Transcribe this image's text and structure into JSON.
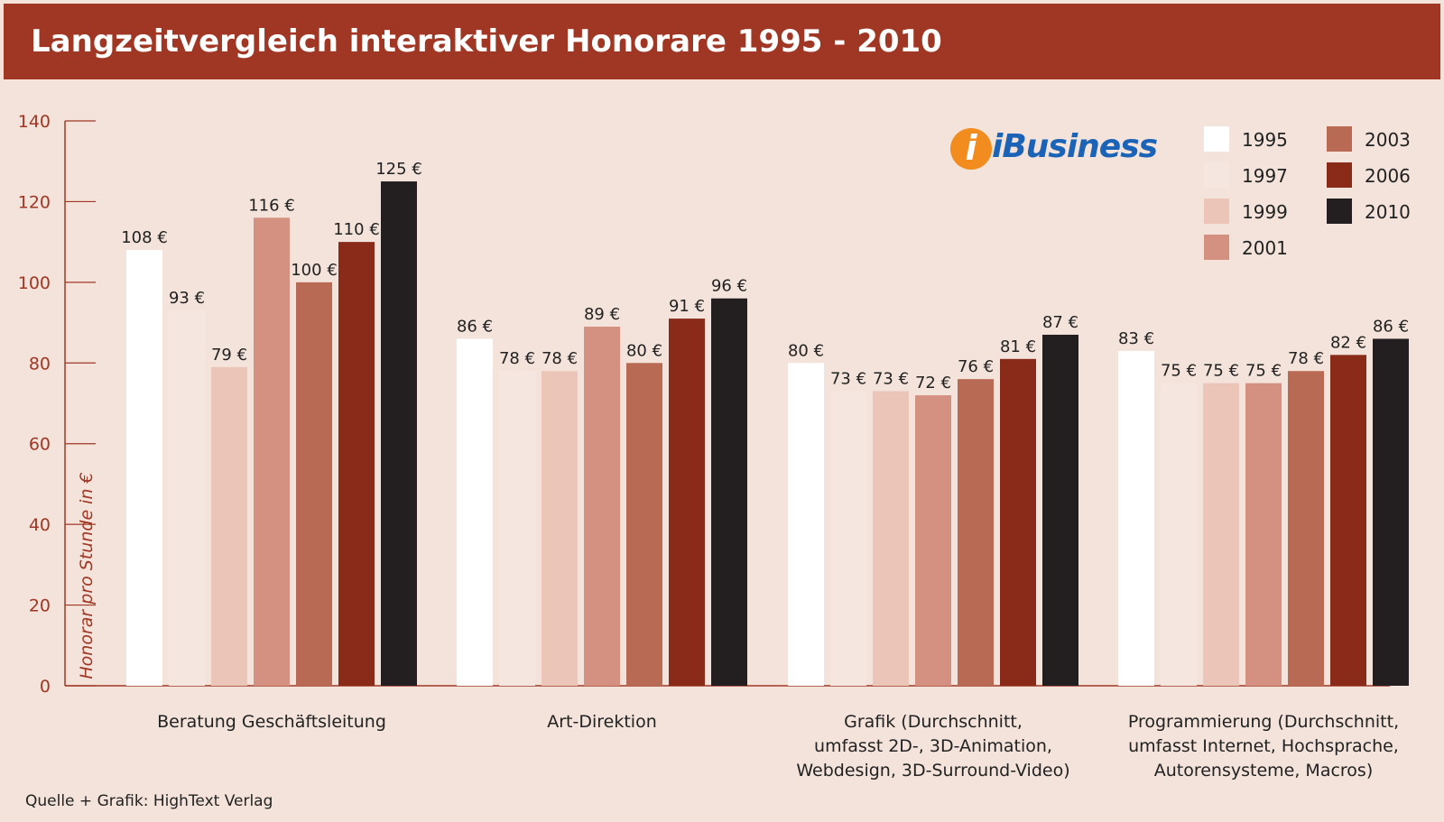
{
  "header": {
    "title": "Langzeitvergleich interaktiver Honorare 1995 - 2010"
  },
  "logo": {
    "badge": "i",
    "text": "iBusiness",
    "colors": {
      "badge": "#f28c1e",
      "text": "#1b63b7"
    }
  },
  "footer": {
    "source": "Quelle + Grafik: HighText Verlag"
  },
  "chart_data": {
    "type": "bar",
    "title": "Langzeitvergleich interaktiver Honorare 1995 - 2010",
    "ylabel": "Honorar pro Stunde in €",
    "xlabel": "",
    "ylim": [
      0,
      140
    ],
    "yticks": [
      "0",
      "20",
      "40",
      "60",
      "80",
      "100",
      "120",
      "140"
    ],
    "grid": false,
    "legend_position": "top-right",
    "unit_suffix": " €",
    "categories": [
      [
        "Beratung Geschäftsleitung"
      ],
      [
        "Art-Direktion"
      ],
      [
        "Grafik (Durchschnitt,",
        "umfasst 2D-, 3D-Animation,",
        "Webdesign, 3D-Surround-Video)"
      ],
      [
        "Programmierung (Durchschnitt,",
        "umfasst Internet, Hochsprache,",
        "Autorensysteme, Macros)"
      ]
    ],
    "series": [
      {
        "name": "1995",
        "color": "#ffffff",
        "values": [
          108,
          86,
          80,
          83
        ]
      },
      {
        "name": "1997",
        "color": "#f6e6e0",
        "values": [
          93,
          78,
          73,
          75
        ]
      },
      {
        "name": "1999",
        "color": "#eac5b8",
        "values": [
          79,
          78,
          73,
          75
        ]
      },
      {
        "name": "2001",
        "color": "#d49080",
        "values": [
          116,
          89,
          72,
          75
        ]
      },
      {
        "name": "2003",
        "color": "#b86a54",
        "values": [
          100,
          80,
          76,
          78
        ]
      },
      {
        "name": "2006",
        "color": "#8a2b19",
        "values": [
          110,
          91,
          81,
          82
        ]
      },
      {
        "name": "2010",
        "color": "#231f20",
        "values": [
          125,
          96,
          87,
          86
        ]
      }
    ],
    "colors": {
      "axis": "#a03724",
      "title_bar": "#a03724",
      "background": "#f3e3da"
    }
  }
}
